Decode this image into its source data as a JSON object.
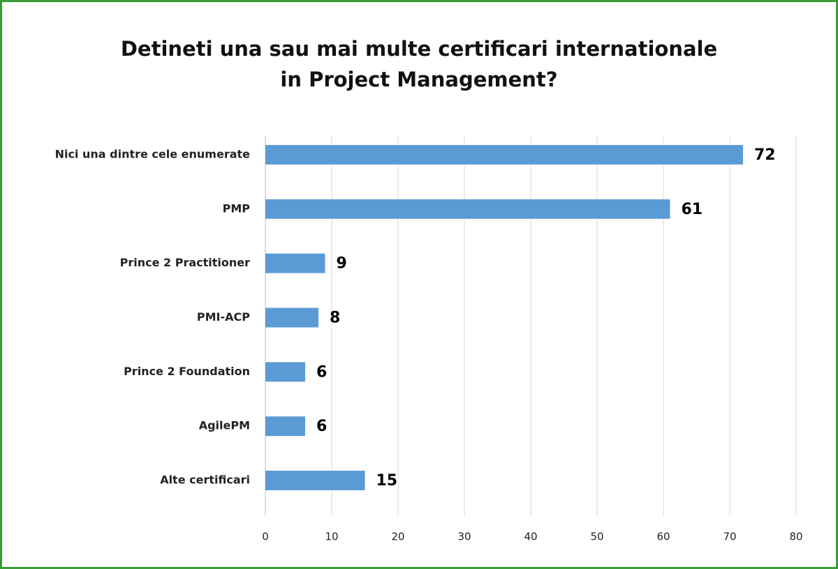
{
  "chart_data": {
    "type": "bar",
    "orientation": "horizontal",
    "title": "Detineti una sau mai multe certificari internationale in Project Management?",
    "categories": [
      "Nici una dintre cele enumerate",
      "PMP",
      "Prince 2 Practitioner",
      "PMI-ACP",
      "Prince 2 Foundation",
      "AgilePM",
      "Alte certificari"
    ],
    "values": [
      72,
      61,
      9,
      8,
      6,
      6,
      15
    ],
    "color": "#5b9bd5",
    "xlim": [
      0,
      80
    ],
    "xticks": [
      0,
      10,
      20,
      30,
      40,
      50,
      60,
      70,
      80
    ],
    "grid": true
  }
}
